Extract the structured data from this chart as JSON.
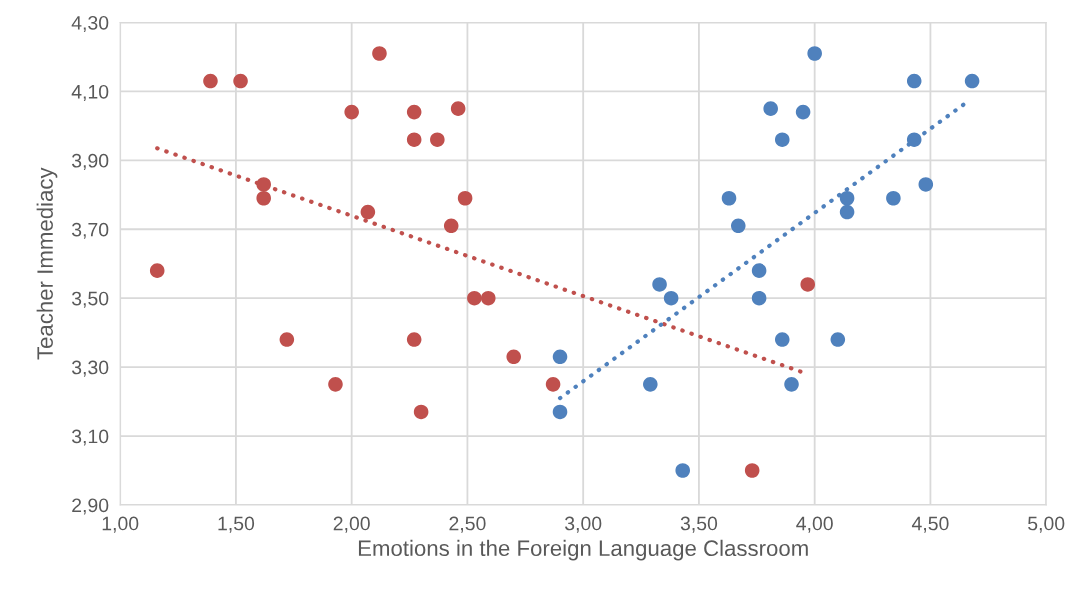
{
  "chart_data": {
    "type": "scatter",
    "xlabel": "Emotions in the Foreign Language Classroom",
    "ylabel": "Teacher Immediacy",
    "xlim": [
      1.0,
      5.0
    ],
    "ylim": [
      2.9,
      4.3
    ],
    "xticks": [
      {
        "value": 1.0,
        "label": "1,00"
      },
      {
        "value": 1.5,
        "label": "1,50"
      },
      {
        "value": 2.0,
        "label": "2,00"
      },
      {
        "value": 2.5,
        "label": "2,50"
      },
      {
        "value": 3.0,
        "label": "3,00"
      },
      {
        "value": 3.5,
        "label": "3,50"
      },
      {
        "value": 4.0,
        "label": "4,00"
      },
      {
        "value": 4.5,
        "label": "4,50"
      },
      {
        "value": 5.0,
        "label": "5,00"
      }
    ],
    "yticks": [
      {
        "value": 2.9,
        "label": "2,90"
      },
      {
        "value": 3.1,
        "label": "3,10"
      },
      {
        "value": 3.3,
        "label": "3,30"
      },
      {
        "value": 3.5,
        "label": "3,50"
      },
      {
        "value": 3.7,
        "label": "3,70"
      },
      {
        "value": 3.9,
        "label": "3,90"
      },
      {
        "value": 4.1,
        "label": "4,10"
      },
      {
        "value": 4.3,
        "label": "4,30"
      }
    ],
    "grid": true,
    "marker": "circle",
    "series": [
      {
        "color": "#c0504d",
        "x": [
          1.16,
          1.39,
          1.52,
          2.12,
          2.0,
          2.27,
          2.46,
          2.27,
          2.37,
          1.62,
          1.62,
          2.07,
          2.49,
          2.43,
          2.53,
          2.59,
          1.72,
          2.27,
          2.7,
          1.93,
          2.87,
          2.3,
          3.73,
          3.97
        ],
        "values": [
          3.58,
          4.13,
          4.13,
          4.21,
          4.04,
          4.04,
          4.05,
          3.96,
          3.96,
          3.83,
          3.79,
          3.75,
          3.79,
          3.71,
          3.5,
          3.5,
          3.38,
          3.38,
          3.33,
          3.25,
          3.25,
          3.17,
          3.0,
          3.54
        ]
      },
      {
        "color": "#4f81bd",
        "x": [
          2.9,
          2.9,
          3.33,
          3.38,
          3.29,
          3.43,
          3.63,
          3.67,
          3.76,
          3.76,
          3.86,
          3.9,
          3.81,
          3.95,
          3.86,
          4.0,
          4.1,
          4.14,
          4.14,
          4.34,
          4.48,
          4.43,
          4.43,
          4.68
        ],
        "values": [
          3.33,
          3.17,
          3.54,
          3.5,
          3.25,
          3.0,
          3.79,
          3.71,
          3.58,
          3.5,
          3.38,
          3.25,
          4.05,
          4.04,
          3.96,
          4.21,
          3.38,
          3.79,
          3.75,
          3.79,
          3.83,
          3.96,
          4.13,
          4.13
        ]
      },
      {
        "type": "line",
        "line_style": "dotted",
        "marker": "none",
        "color": "#c0504d",
        "x": [
          1.16,
          3.97
        ],
        "values": [
          3.935,
          3.28
        ]
      },
      {
        "type": "line",
        "line_style": "dotted",
        "marker": "none",
        "color": "#4f81bd",
        "x": [
          2.9,
          4.66
        ],
        "values": [
          3.21,
          4.07
        ]
      }
    ]
  }
}
